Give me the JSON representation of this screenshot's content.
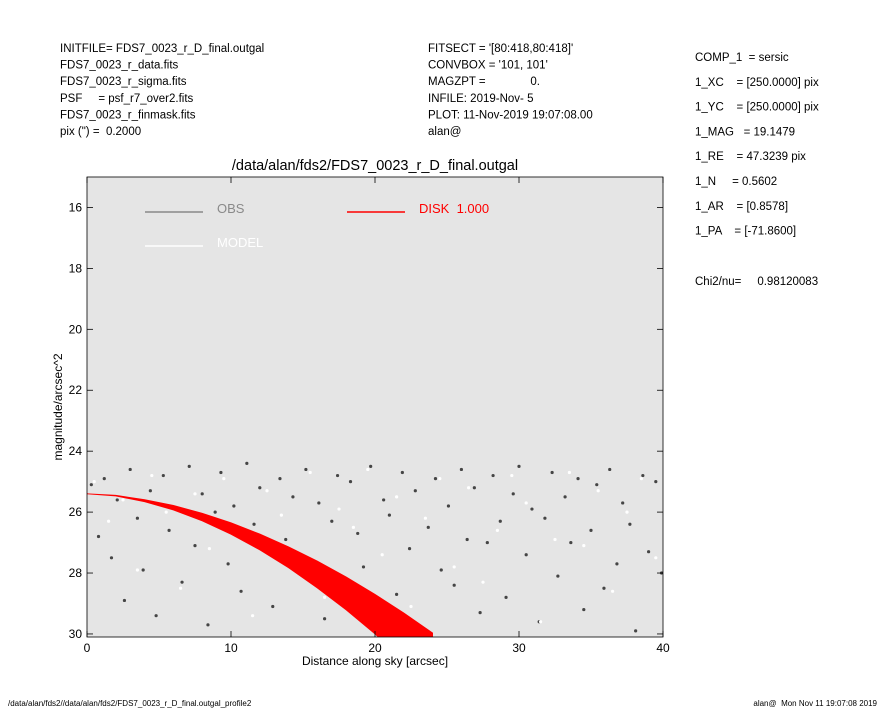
{
  "header": {
    "left": [
      "INITFILE= FDS7_0023_r_D_final.outgal",
      "FDS7_0023_r_data.fits",
      "FDS7_0023_r_sigma.fits",
      "PSF     = psf_r7_over2.fits",
      "FDS7_0023_r_finmask.fits",
      "pix (\") =  0.2000"
    ],
    "middle": [
      "FITSECT = '[80:418,80:418]'",
      "CONVBOX = '101, 101'",
      "MAGZPT =              0.",
      "INFILE: 2019-Nov- 5",
      "PLOT: 11-Nov-2019 19:07:08.00",
      "alan@"
    ],
    "parameters": [
      "COMP_1  = sersic",
      "1_XC    = [250.0000] pix",
      "1_YC    = [250.0000] pix",
      "1_MAG   = 19.1479",
      "1_RE    = 47.3239 pix",
      "1_N     = 0.5602",
      "1_AR    = [0.8578]",
      "1_PA    = [-71.8600]"
    ],
    "chi2": "Chi2/nu=     0.98120083"
  },
  "footer": {
    "left": "/data/alan/fds2//data/alan/fds2/FDS7_0023_r_D_final.outgal_profile2",
    "right": "alan@  Mon Nov 11 19:07:08 2019"
  },
  "chart_data": {
    "type": "scatter",
    "title": "/data/alan/fds2/FDS7_0023_r_D_final.outgal",
    "x_label": "Distance along sky [arcsec]",
    "y_label": "magnitude/arcsec^2",
    "xlim": [
      0,
      40
    ],
    "ylim": [
      15,
      30.1
    ],
    "y_inverted": true,
    "xticks": [
      0,
      10,
      20,
      30,
      40
    ],
    "yticks": [
      16,
      18,
      20,
      22,
      24,
      26,
      28,
      30
    ],
    "background": "#e5e5e5",
    "series": [
      {
        "name": "OBS",
        "type": "scatter",
        "color": "#454545",
        "x": [
          0.3,
          0.8,
          1.2,
          1.7,
          2.1,
          2.6,
          3.0,
          3.5,
          3.9,
          4.4,
          4.8,
          5.3,
          5.7,
          6.2,
          6.6,
          7.1,
          7.5,
          8.0,
          8.4,
          8.9,
          9.3,
          9.8,
          10.2,
          10.7,
          11.1,
          11.6,
          12.0,
          12.5,
          12.9,
          13.4,
          13.8,
          14.3,
          14.7,
          15.2,
          15.6,
          16.1,
          16.5,
          17.0,
          17.4,
          17.9,
          18.3,
          18.8,
          19.2,
          19.7,
          20.1,
          20.6,
          21.0,
          21.5,
          21.9,
          22.4,
          22.8,
          23.3,
          23.7,
          24.2,
          24.6,
          25.1,
          25.5,
          26.0,
          26.4,
          26.9,
          27.3,
          27.8,
          28.2,
          28.7,
          29.1,
          29.6,
          30.0,
          30.5,
          30.9,
          31.4,
          31.8,
          32.3,
          32.7,
          33.2,
          33.6,
          34.1,
          34.5,
          35.0,
          35.4,
          35.9,
          36.3,
          36.8,
          37.2,
          37.7,
          38.1,
          38.6,
          39.0,
          39.5,
          39.9
        ],
        "values": [
          25.1,
          26.8,
          24.9,
          27.5,
          25.6,
          28.9,
          24.6,
          26.2,
          27.9,
          25.3,
          29.4,
          24.8,
          26.6,
          25.9,
          28.3,
          24.5,
          27.1,
          25.4,
          29.7,
          26.0,
          24.7,
          27.7,
          25.8,
          28.6,
          24.4,
          26.4,
          25.2,
          27.3,
          29.1,
          24.9,
          26.9,
          25.5,
          28.0,
          24.6,
          27.6,
          25.7,
          29.5,
          26.3,
          24.8,
          28.2,
          25.0,
          26.7,
          27.8,
          24.5,
          29.0,
          25.6,
          26.1,
          28.7,
          24.7,
          27.2,
          25.3,
          29.8,
          26.5,
          24.9,
          27.9,
          25.8,
          28.4,
          24.6,
          26.9,
          25.2,
          29.3,
          27.0,
          24.8,
          26.3,
          28.8,
          25.4,
          24.5,
          27.4,
          25.9,
          29.6,
          26.2,
          24.7,
          28.1,
          25.5,
          27.0,
          24.9,
          29.2,
          26.6,
          25.1,
          28.5,
          24.6,
          27.7,
          25.7,
          26.4,
          29.9,
          24.8,
          27.3,
          25.0,
          28.0
        ]
      },
      {
        "name": "MODEL",
        "type": "scatter",
        "color": "#ffffff",
        "x": [
          0.5,
          1.5,
          2.5,
          3.5,
          4.5,
          5.5,
          6.5,
          7.5,
          8.5,
          9.5,
          10.5,
          11.5,
          12.5,
          13.5,
          14.5,
          15.5,
          16.5,
          17.5,
          18.5,
          19.5,
          20.5,
          21.5,
          22.5,
          23.5,
          24.5,
          25.5,
          26.5,
          27.5,
          28.5,
          29.5,
          30.5,
          31.5,
          32.5,
          33.5,
          34.5,
          35.5,
          36.5,
          37.5,
          38.5,
          39.5
        ],
        "values": [
          25.0,
          26.3,
          25.6,
          27.9,
          24.8,
          26.0,
          28.5,
          25.4,
          27.2,
          24.9,
          26.7,
          29.4,
          25.3,
          26.1,
          27.6,
          24.7,
          28.8,
          25.9,
          26.5,
          24.6,
          27.4,
          25.5,
          29.1,
          26.2,
          24.9,
          27.8,
          25.2,
          28.3,
          26.6,
          24.8,
          25.7,
          29.6,
          26.9,
          24.7,
          27.1,
          25.3,
          28.6,
          26.0,
          24.9,
          27.5
        ]
      },
      {
        "name": "DISK  1.000",
        "type": "band",
        "color": "#ff0000",
        "x": [
          0,
          2,
          4,
          6,
          8,
          10,
          12,
          14,
          16,
          18,
          20,
          22,
          24
        ],
        "values_min": [
          25.4,
          25.45,
          25.59,
          25.78,
          26.04,
          26.35,
          26.72,
          27.14,
          27.61,
          28.13,
          28.7,
          29.31,
          29.97
        ],
        "values_max": [
          25.4,
          25.47,
          25.66,
          25.93,
          26.29,
          26.73,
          27.24,
          27.83,
          28.49,
          29.21,
          30.0,
          30.86,
          31.78
        ]
      }
    ]
  }
}
